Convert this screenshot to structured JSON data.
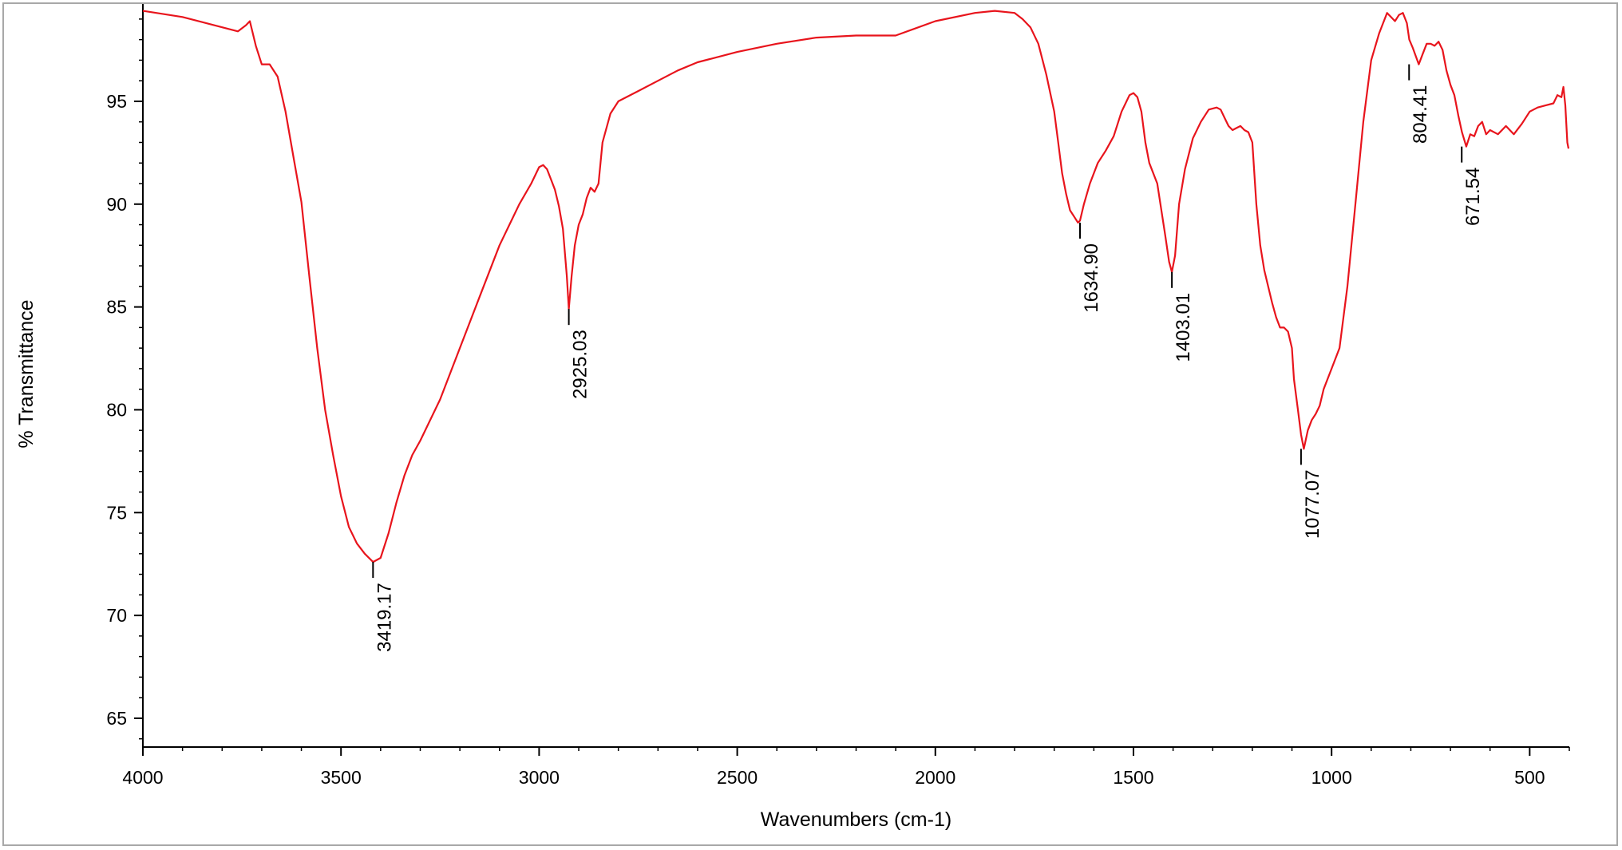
{
  "chart_data": {
    "type": "line",
    "xlabel": "Wavenumbers (cm-1)",
    "ylabel": "% Transmittance",
    "xlim": [
      4000,
      400
    ],
    "ylim": [
      63.6,
      99.5
    ],
    "x_reversed": true,
    "x_ticks": [
      4000,
      3500,
      3000,
      2500,
      2000,
      1500,
      1000,
      500
    ],
    "x_tick_labels": [
      "4000",
      "3500",
      "3000",
      "2500",
      "2000",
      "1500",
      "1000",
      "500"
    ],
    "y_ticks": [
      65,
      70,
      75,
      80,
      85,
      90,
      95
    ],
    "y_tick_labels": [
      "65",
      "70",
      "75",
      "80",
      "85",
      "90",
      "95"
    ],
    "grid": false,
    "line_color": "#e8141c",
    "series": [
      {
        "x": [
          4000,
          3900,
          3800,
          3760,
          3740,
          3730,
          3715,
          3700,
          3680,
          3660,
          3640,
          3620,
          3600,
          3580,
          3560,
          3540,
          3520,
          3500,
          3480,
          3460,
          3440,
          3419,
          3400,
          3380,
          3360,
          3340,
          3320,
          3300,
          3250,
          3200,
          3150,
          3100,
          3050,
          3020,
          3000,
          2990,
          2980,
          2970,
          2960,
          2950,
          2940,
          2930,
          2925,
          2918,
          2910,
          2900,
          2890,
          2880,
          2870,
          2860,
          2850,
          2840,
          2820,
          2800,
          2750,
          2700,
          2650,
          2600,
          2500,
          2400,
          2300,
          2200,
          2100,
          2000,
          1900,
          1850,
          1800,
          1780,
          1760,
          1740,
          1720,
          1700,
          1690,
          1680,
          1670,
          1660,
          1650,
          1640,
          1635,
          1625,
          1610,
          1590,
          1570,
          1550,
          1530,
          1510,
          1500,
          1490,
          1480,
          1470,
          1460,
          1440,
          1420,
          1410,
          1403,
          1395,
          1385,
          1370,
          1350,
          1330,
          1310,
          1290,
          1280,
          1270,
          1260,
          1250,
          1240,
          1230,
          1220,
          1210,
          1200,
          1190,
          1180,
          1170,
          1160,
          1150,
          1140,
          1130,
          1120,
          1110,
          1100,
          1095,
          1085,
          1077,
          1070,
          1060,
          1050,
          1040,
          1030,
          1020,
          1000,
          980,
          960,
          940,
          920,
          900,
          880,
          870,
          860,
          850,
          840,
          830,
          820,
          810,
          804,
          795,
          780,
          770,
          760,
          750,
          740,
          730,
          720,
          710,
          700,
          690,
          680,
          671,
          660,
          650,
          640,
          630,
          620,
          610,
          600,
          580,
          560,
          540,
          520,
          500,
          480,
          460,
          440,
          430,
          420,
          415,
          410,
          405,
          402
        ],
        "y": [
          99.4,
          99.1,
          98.6,
          98.4,
          98.7,
          98.9,
          97.7,
          96.8,
          96.8,
          96.2,
          94.5,
          92.3,
          90.1,
          86.5,
          83.0,
          80.0,
          77.8,
          75.8,
          74.3,
          73.5,
          73.0,
          72.6,
          72.8,
          74.0,
          75.5,
          76.8,
          77.8,
          78.5,
          80.5,
          83.0,
          85.5,
          88.0,
          90.0,
          91.0,
          91.8,
          91.9,
          91.7,
          91.2,
          90.7,
          89.9,
          88.8,
          86.5,
          84.9,
          86.5,
          88.0,
          89.0,
          89.5,
          90.3,
          90.8,
          90.6,
          91.0,
          93.0,
          94.4,
          95.0,
          95.5,
          96.0,
          96.5,
          96.9,
          97.4,
          97.8,
          98.1,
          98.2,
          98.2,
          98.9,
          99.3,
          99.4,
          99.3,
          99.0,
          98.6,
          97.8,
          96.3,
          94.5,
          93.0,
          91.5,
          90.5,
          89.7,
          89.4,
          89.1,
          89.2,
          90.0,
          91.0,
          92.0,
          92.6,
          93.3,
          94.5,
          95.3,
          95.4,
          95.2,
          94.5,
          93.0,
          92.0,
          91.0,
          88.5,
          87.2,
          86.7,
          87.5,
          90.0,
          91.7,
          93.2,
          94.0,
          94.6,
          94.7,
          94.6,
          94.2,
          93.8,
          93.6,
          93.7,
          93.8,
          93.6,
          93.5,
          93.0,
          90.0,
          88.0,
          86.8,
          86.0,
          85.2,
          84.5,
          84.0,
          84.0,
          83.8,
          83.0,
          81.5,
          80.0,
          78.8,
          78.1,
          79.0,
          79.5,
          79.8,
          80.2,
          81.0,
          82.0,
          83.0,
          86.0,
          90.0,
          94.0,
          97.0,
          98.3,
          98.8,
          99.3,
          99.1,
          98.9,
          99.2,
          99.3,
          98.8,
          98.0,
          97.6,
          96.8,
          97.3,
          97.8,
          97.8,
          97.7,
          97.9,
          97.5,
          96.5,
          95.8,
          95.3,
          94.3,
          93.5,
          92.8,
          93.4,
          93.3,
          93.8,
          94.0,
          93.4,
          93.6,
          93.4,
          93.8,
          93.4,
          93.9,
          94.5,
          94.7,
          94.8,
          94.9,
          95.3,
          95.2,
          95.7,
          94.8,
          93.0,
          92.7
        ]
      }
    ],
    "peak_labels": [
      {
        "x": 3419.17,
        "y": 72.6,
        "label": "3419.17"
      },
      {
        "x": 2925.03,
        "y": 84.9,
        "label": "2925.03"
      },
      {
        "x": 1634.9,
        "y": 89.1,
        "label": "1634.90"
      },
      {
        "x": 1403.01,
        "y": 86.7,
        "label": "1403.01"
      },
      {
        "x": 1077.07,
        "y": 78.1,
        "label": "1077.07"
      },
      {
        "x": 804.41,
        "y": 96.8,
        "label": "804.41"
      },
      {
        "x": 671.54,
        "y": 92.8,
        "label": "671.54"
      }
    ]
  }
}
